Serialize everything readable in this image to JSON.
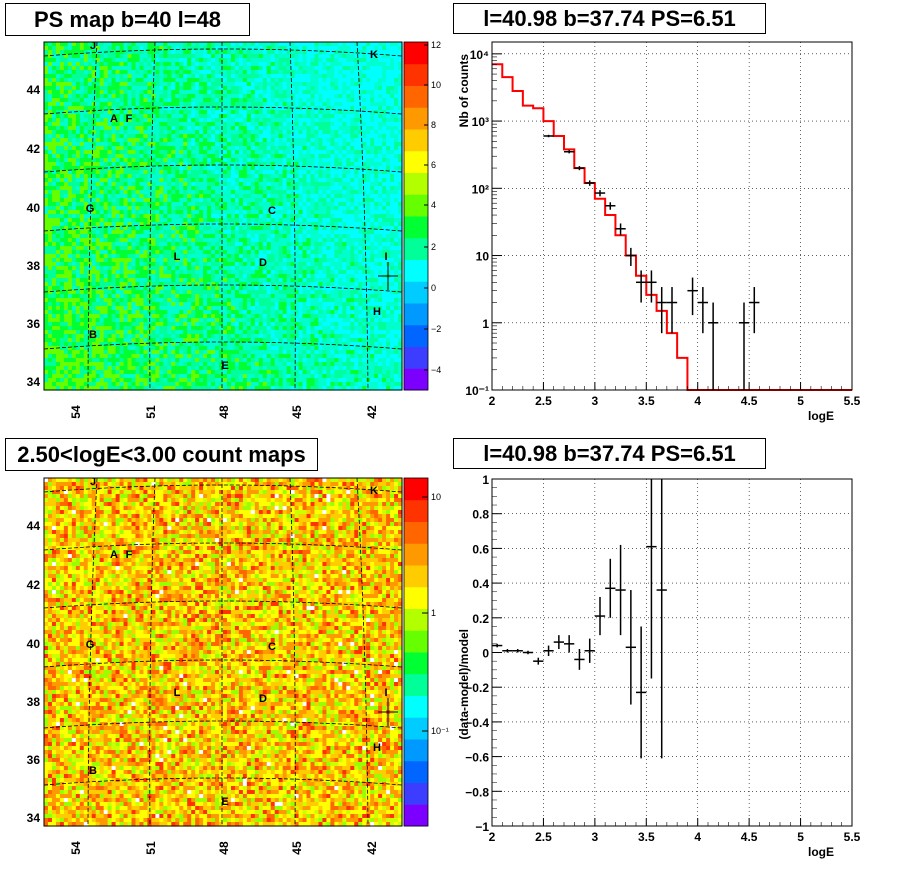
{
  "panels": {
    "tl_title": "PS map b=40 l=48",
    "tr_title": "l=40.98 b=37.74 PS=6.51",
    "bl_title": "2.50<logE<3.00 count maps",
    "br_title": "l=40.98 b=37.74 PS=6.51"
  },
  "maps": {
    "lon_ticks": [
      "54",
      "51",
      "48",
      "45",
      "42"
    ],
    "lat_ticks": [
      "44",
      "42",
      "40",
      "38",
      "36",
      "34"
    ],
    "source_labels": [
      "J",
      "K",
      "A",
      "F",
      "G",
      "C",
      "L",
      "D",
      "I",
      "H",
      "B",
      "E"
    ],
    "ps_palette_ticks": [
      "12",
      "10",
      "8",
      "6",
      "4",
      "2",
      "0",
      "−2",
      "−4"
    ],
    "count_palette_ticks": [
      "10",
      "1",
      "10⁻¹"
    ]
  },
  "chart_data": [
    {
      "type": "heatmap",
      "title": "PS map b=40 l=48",
      "xlabel": "",
      "ylabel": "",
      "x_ticks": [
        "54",
        "51",
        "48",
        "45",
        "42"
      ],
      "y_ticks": [
        "44",
        "42",
        "40",
        "38",
        "36",
        "34"
      ],
      "z_range": [
        -5,
        12
      ],
      "sources": [
        "J",
        "K",
        "A",
        "F",
        "G",
        "C",
        "L",
        "D",
        "I",
        "H",
        "B",
        "E"
      ]
    },
    {
      "type": "scatter",
      "title": "l=40.98 b=37.74 PS=6.51",
      "xlabel": "logE",
      "ylabel": "Nb of counts",
      "xlim": [
        2,
        5.5
      ],
      "ylim": [
        0.1,
        15000
      ],
      "yscale": "log",
      "grid": true,
      "x_ticks": [
        "2",
        "2.5",
        "3",
        "3.5",
        "4",
        "4.5",
        "5",
        "5.5"
      ],
      "y_ticks": [
        "10⁻¹",
        "1",
        "10",
        "10²",
        "10³",
        "10⁴"
      ],
      "data_points": [
        {
          "x": 2.55,
          "y": 600,
          "ylo": 575,
          "yhi": 625
        },
        {
          "x": 2.75,
          "y": 350,
          "ylo": 331,
          "yhi": 369
        },
        {
          "x": 2.85,
          "y": 200,
          "ylo": 186,
          "yhi": 214
        },
        {
          "x": 2.95,
          "y": 120,
          "ylo": 109,
          "yhi": 131
        },
        {
          "x": 3.05,
          "y": 85,
          "ylo": 76,
          "yhi": 94
        },
        {
          "x": 3.15,
          "y": 55,
          "ylo": 48,
          "yhi": 62
        },
        {
          "x": 3.25,
          "y": 25,
          "ylo": 20,
          "yhi": 30
        },
        {
          "x": 3.35,
          "y": 10,
          "ylo": 7,
          "yhi": 13
        },
        {
          "x": 3.45,
          "y": 4,
          "ylo": 2,
          "yhi": 6
        },
        {
          "x": 3.55,
          "y": 4,
          "ylo": 2,
          "yhi": 6
        },
        {
          "x": 3.65,
          "y": 2,
          "ylo": 0.7,
          "yhi": 3.4
        },
        {
          "x": 3.75,
          "y": 2,
          "ylo": 0.7,
          "yhi": 3.4
        },
        {
          "x": 3.95,
          "y": 3,
          "ylo": 1.3,
          "yhi": 4.7
        },
        {
          "x": 4.05,
          "y": 2,
          "ylo": 0.7,
          "yhi": 3.4
        },
        {
          "x": 4.15,
          "y": 1,
          "ylo": 0.1,
          "yhi": 2.0
        },
        {
          "x": 4.45,
          "y": 1,
          "ylo": 0.1,
          "yhi": 2.0
        },
        {
          "x": 4.55,
          "y": 2,
          "ylo": 0.7,
          "yhi": 3.4
        }
      ],
      "model_steps": [
        {
          "x0": 2.0,
          "x1": 2.1,
          "y": 7000
        },
        {
          "x0": 2.1,
          "x1": 2.2,
          "y": 4500
        },
        {
          "x0": 2.2,
          "x1": 2.3,
          "y": 2800
        },
        {
          "x0": 2.3,
          "x1": 2.4,
          "y": 1700
        },
        {
          "x0": 2.4,
          "x1": 2.5,
          "y": 1550
        },
        {
          "x0": 2.5,
          "x1": 2.6,
          "y": 1000
        },
        {
          "x0": 2.6,
          "x1": 2.7,
          "y": 600
        },
        {
          "x0": 2.7,
          "x1": 2.8,
          "y": 380
        },
        {
          "x0": 2.8,
          "x1": 2.9,
          "y": 200
        },
        {
          "x0": 2.9,
          "x1": 3.0,
          "y": 120
        },
        {
          "x0": 3.0,
          "x1": 3.1,
          "y": 70
        },
        {
          "x0": 3.1,
          "x1": 3.2,
          "y": 40
        },
        {
          "x0": 3.2,
          "x1": 3.3,
          "y": 20
        },
        {
          "x0": 3.3,
          "x1": 3.4,
          "y": 10
        },
        {
          "x0": 3.4,
          "x1": 3.5,
          "y": 5
        },
        {
          "x0": 3.5,
          "x1": 3.6,
          "y": 2.6
        },
        {
          "x0": 3.6,
          "x1": 3.7,
          "y": 1.5
        },
        {
          "x0": 3.7,
          "x1": 3.8,
          "y": 0.7
        },
        {
          "x0": 3.8,
          "x1": 3.9,
          "y": 0.3
        },
        {
          "x0": 3.9,
          "x1": 4.0,
          "y": 0.1
        },
        {
          "x0": 4.0,
          "x1": 5.5,
          "y": 0.1
        }
      ],
      "series_colors": {
        "data": "#000000",
        "model": "#ff0000"
      }
    },
    {
      "type": "heatmap",
      "title": "2.50<logE<3.00 count maps",
      "xlabel": "",
      "ylabel": "",
      "x_ticks": [
        "54",
        "51",
        "48",
        "45",
        "42"
      ],
      "y_ticks": [
        "44",
        "42",
        "40",
        "38",
        "36",
        "34"
      ],
      "z_scale": "log",
      "z_ticks": [
        "10",
        "1",
        "10⁻¹"
      ],
      "sources": [
        "J",
        "K",
        "A",
        "F",
        "G",
        "C",
        "L",
        "D",
        "I",
        "H",
        "B",
        "E"
      ]
    },
    {
      "type": "scatter",
      "title": "l=40.98 b=37.74 PS=6.51",
      "xlabel": "logE",
      "ylabel": "(data-model)/model",
      "xlim": [
        2,
        5.5
      ],
      "ylim": [
        -1,
        1
      ],
      "grid": true,
      "x_ticks": [
        "2",
        "2.5",
        "3",
        "3.5",
        "4",
        "4.5",
        "5",
        "5.5"
      ],
      "y_ticks": [
        "1",
        "0.8",
        "0.6",
        "0.4",
        "0.2",
        "0",
        "−0.2",
        "−0.4",
        "−0.6",
        "−0.8",
        "−1"
      ],
      "points": [
        {
          "x": 2.05,
          "y": 0.04,
          "ylo": 0.03,
          "yhi": 0.05
        },
        {
          "x": 2.15,
          "y": 0.01,
          "ylo": 0.0,
          "yhi": 0.02
        },
        {
          "x": 2.25,
          "y": 0.01,
          "ylo": 0.0,
          "yhi": 0.02
        },
        {
          "x": 2.35,
          "y": 0.0,
          "ylo": -0.01,
          "yhi": 0.01
        },
        {
          "x": 2.45,
          "y": -0.05,
          "ylo": -0.07,
          "yhi": -0.03
        },
        {
          "x": 2.55,
          "y": 0.01,
          "ylo": -0.02,
          "yhi": 0.04
        },
        {
          "x": 2.65,
          "y": 0.06,
          "ylo": 0.02,
          "yhi": 0.1
        },
        {
          "x": 2.75,
          "y": 0.05,
          "ylo": 0.0,
          "yhi": 0.1
        },
        {
          "x": 2.85,
          "y": -0.04,
          "ylo": -0.1,
          "yhi": 0.02
        },
        {
          "x": 2.95,
          "y": 0.01,
          "ylo": -0.06,
          "yhi": 0.08
        },
        {
          "x": 3.05,
          "y": 0.21,
          "ylo": 0.1,
          "yhi": 0.32
        },
        {
          "x": 3.15,
          "y": 0.37,
          "ylo": 0.2,
          "yhi": 0.54
        },
        {
          "x": 3.25,
          "y": 0.36,
          "ylo": 0.1,
          "yhi": 0.62
        },
        {
          "x": 3.35,
          "y": 0.03,
          "ylo": -0.3,
          "yhi": 0.36
        },
        {
          "x": 3.45,
          "y": -0.23,
          "ylo": -0.61,
          "yhi": 0.15
        },
        {
          "x": 3.55,
          "y": 0.61,
          "ylo": -0.15,
          "yhi": 1.0
        },
        {
          "x": 3.65,
          "y": 0.36,
          "ylo": -0.61,
          "yhi": 1.0
        }
      ]
    }
  ]
}
